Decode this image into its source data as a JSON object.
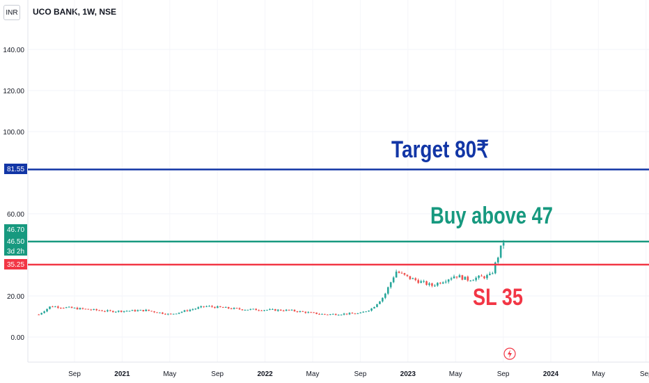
{
  "header": {
    "currency": "INR",
    "symbol": "UCO BANK, 1W, NSE"
  },
  "badges": {
    "target_line": "81.55",
    "last_high": "46.70",
    "last_price": "46.50",
    "countdown": "3d 2h",
    "stop_line": "35.25"
  },
  "annotations": {
    "target": "Target 80₹",
    "buy": "Buy above 47",
    "stop": "SL 35"
  },
  "colors": {
    "target": "#1236a6",
    "buy": "#17997f",
    "stop": "#f23645",
    "up_candle": "#26a69a",
    "down_candle": "#ef5350"
  },
  "chart_data": {
    "type": "candlestick",
    "title": "UCO BANK, 1W, NSE",
    "ylim": [
      -5,
      160
    ],
    "y_ticks": [
      "0.00",
      "20.00",
      "60.00",
      "100.00",
      "120.00",
      "140.00"
    ],
    "x_ticks": [
      "Sep",
      "2021",
      "May",
      "Sep",
      "2022",
      "May",
      "Sep",
      "2023",
      "May",
      "Sep",
      "2024",
      "May",
      "Sep"
    ],
    "x_start": "2020-06",
    "x_end": "2024-09",
    "hlines": [
      {
        "label": "Target 80₹",
        "value": 81.55,
        "color": "#1236a6"
      },
      {
        "label": "Buy above 47",
        "value": 46.5,
        "color": "#17997f"
      },
      {
        "label": "SL 35",
        "value": 35.25,
        "color": "#f23645"
      }
    ],
    "price_path": [
      {
        "date": "2020-06",
        "close": 11.0
      },
      {
        "date": "2020-07",
        "close": 15.0
      },
      {
        "date": "2020-09",
        "close": 14.0
      },
      {
        "date": "2020-12",
        "close": 12.5
      },
      {
        "date": "2021-03",
        "close": 13.0
      },
      {
        "date": "2021-05",
        "close": 11.0
      },
      {
        "date": "2021-08",
        "close": 15.0
      },
      {
        "date": "2021-11",
        "close": 13.5
      },
      {
        "date": "2022-03",
        "close": 13.0
      },
      {
        "date": "2022-06",
        "close": 11.0
      },
      {
        "date": "2022-09",
        "close": 11.5
      },
      {
        "date": "2022-10",
        "close": 14.0
      },
      {
        "date": "2022-11",
        "close": 20.0
      },
      {
        "date": "2022-12",
        "close": 32.0
      },
      {
        "date": "2023-01",
        "close": 29.0
      },
      {
        "date": "2023-03",
        "close": 25.0
      },
      {
        "date": "2023-05",
        "close": 30.0
      },
      {
        "date": "2023-06",
        "close": 28.0
      },
      {
        "date": "2023-08",
        "close": 30.0
      },
      {
        "date": "2023-09",
        "close": 46.5
      }
    ]
  }
}
